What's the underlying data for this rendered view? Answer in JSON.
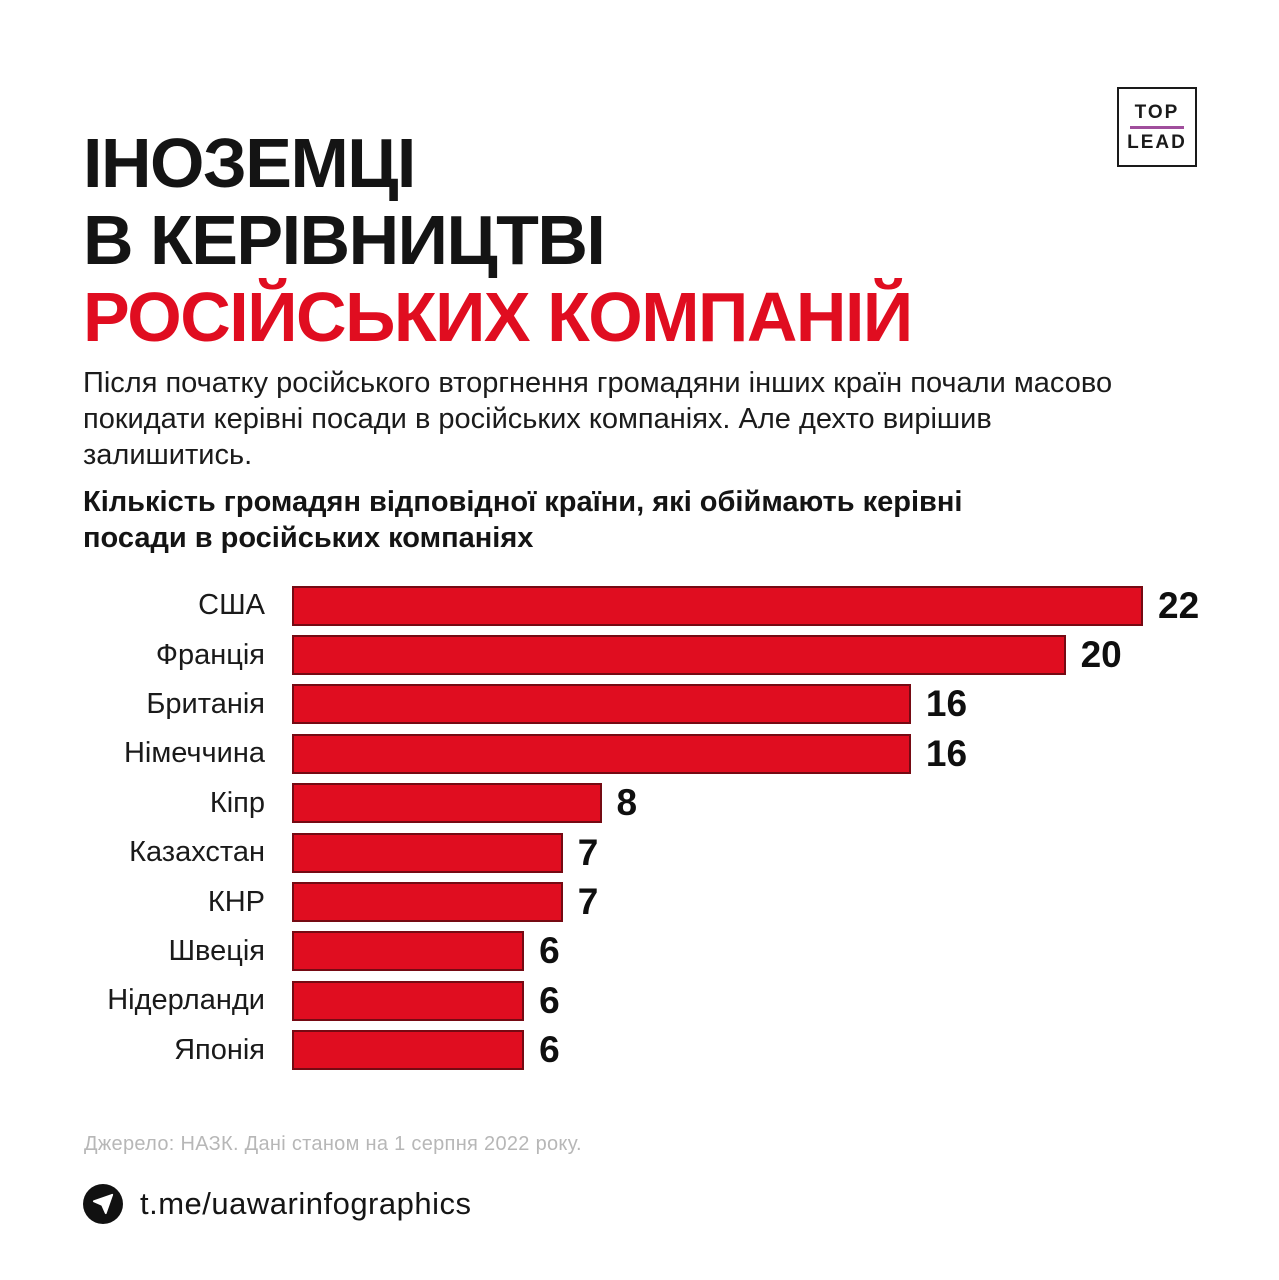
{
  "header": {
    "title_line1": "ІНОЗЕМЦІ",
    "title_line2": "В КЕРІВНИЦТВІ",
    "title_line3": "РОСІЙСЬКИХ КОМПАНІЙ",
    "accent_color": "#e00d20"
  },
  "logo": {
    "top": "TOP",
    "bottom": "LEAD",
    "divider_color": "#a04e9c"
  },
  "intro": "Після початку російського вторгнення громадяни інших країн почали масово покидати керівні посади в російських компаніях. Але дехто вирішив залишитись.",
  "chart_data": {
    "type": "bar",
    "orientation": "horizontal",
    "title": "Кількість громадян відповідної країни, які обіймають керівні посади в російських компаніях",
    "categories": [
      "США",
      "Франція",
      "Британія",
      "Німеччина",
      "Кіпр",
      "Казахстан",
      "КНР",
      "Швеція",
      "Нідерланди",
      "Японія"
    ],
    "values": [
      22,
      20,
      16,
      16,
      8,
      7,
      7,
      6,
      6,
      6
    ],
    "value_labels_shown": true,
    "xlim": [
      0,
      22
    ],
    "grid": false,
    "bar_color": "#e00d20"
  },
  "footer": {
    "source": "Джерело: НАЗК. Дані станом на 1 серпня 2022 року.",
    "telegram_handle": "t.me/uawarinfographics",
    "telegram_icon": "telegram-paper-plane-icon"
  }
}
